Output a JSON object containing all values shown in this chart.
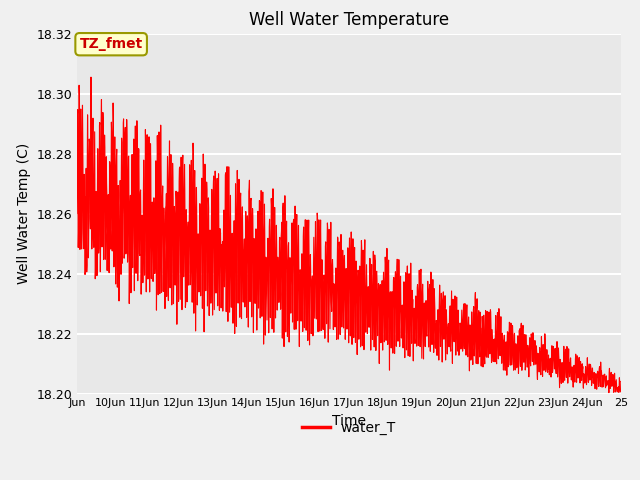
{
  "title": "Well Water Temperature",
  "xlabel": "Time",
  "ylabel": "Well Water Temp (C)",
  "line_color": "#ff0000",
  "line_width": 0.8,
  "legend_label": "water_T",
  "annotation_text": "TZ_fmet",
  "annotation_bg": "#ffffcc",
  "annotation_border": "#999900",
  "annotation_text_color": "#cc0000",
  "ylim": [
    18.2,
    18.32
  ],
  "yticks": [
    18.2,
    18.22,
    18.24,
    18.26,
    18.28,
    18.3,
    18.32
  ],
  "fig_bg_color": "#f0f0f0",
  "plot_bg_color": "#e8e8e8",
  "grid_color": "#ffffff",
  "start_day": 9,
  "end_day": 25,
  "seed": 7
}
